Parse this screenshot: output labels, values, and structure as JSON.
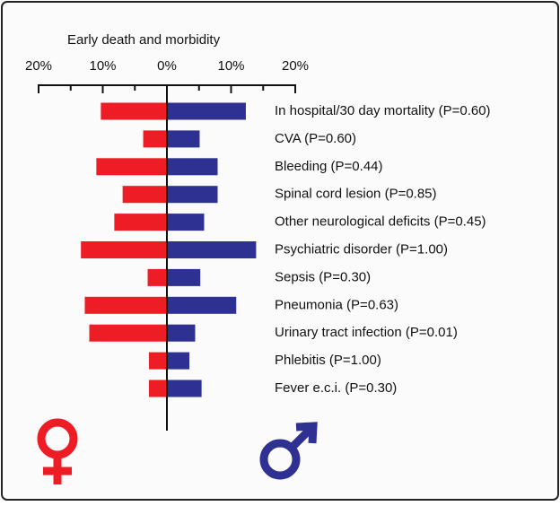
{
  "chart_data": {
    "type": "butterfly-bar",
    "title": "Early death and morbidity",
    "categories": [
      "In hospital/30 day mortality (P=0.60)",
      "CVA (P=0.60)",
      "Bleeding (P=0.44)",
      "Spinal cord lesion (P=0.85)",
      "Other neurological deficits (P=0.45)",
      "Psychiatric disorder (P=1.00)",
      "Sepsis (P=0.30)",
      "Pneumonia (P=0.63)",
      "Urinary tract infection (P=0.01)",
      "Phlebitis (P=1.00)",
      "Fever e.c.i. (P=0.30)"
    ],
    "series": [
      {
        "color": "#ee1c25",
        "values": [
          -10.3,
          -3.7,
          -11,
          -6.9,
          -8.2,
          -13.4,
          -3,
          -12.8,
          -12.1,
          -2.8,
          -2.8
        ]
      },
      {
        "color": "#2e3192",
        "values": [
          12.3,
          5.1,
          7.9,
          7.9,
          5.8,
          13.9,
          5.2,
          10.8,
          4.4,
          3.5,
          5.4
        ]
      }
    ],
    "xlim": [
      -20,
      20
    ],
    "xticks": [
      {
        "value": -20,
        "label": "20%"
      },
      {
        "value": -10,
        "label": "10%"
      },
      {
        "value": 0,
        "label": "0%"
      },
      {
        "value": 10,
        "label": "10%"
      },
      {
        "value": 20,
        "label": "20%"
      }
    ],
    "minor_xticks": [
      -15,
      -5,
      5,
      15
    ]
  }
}
